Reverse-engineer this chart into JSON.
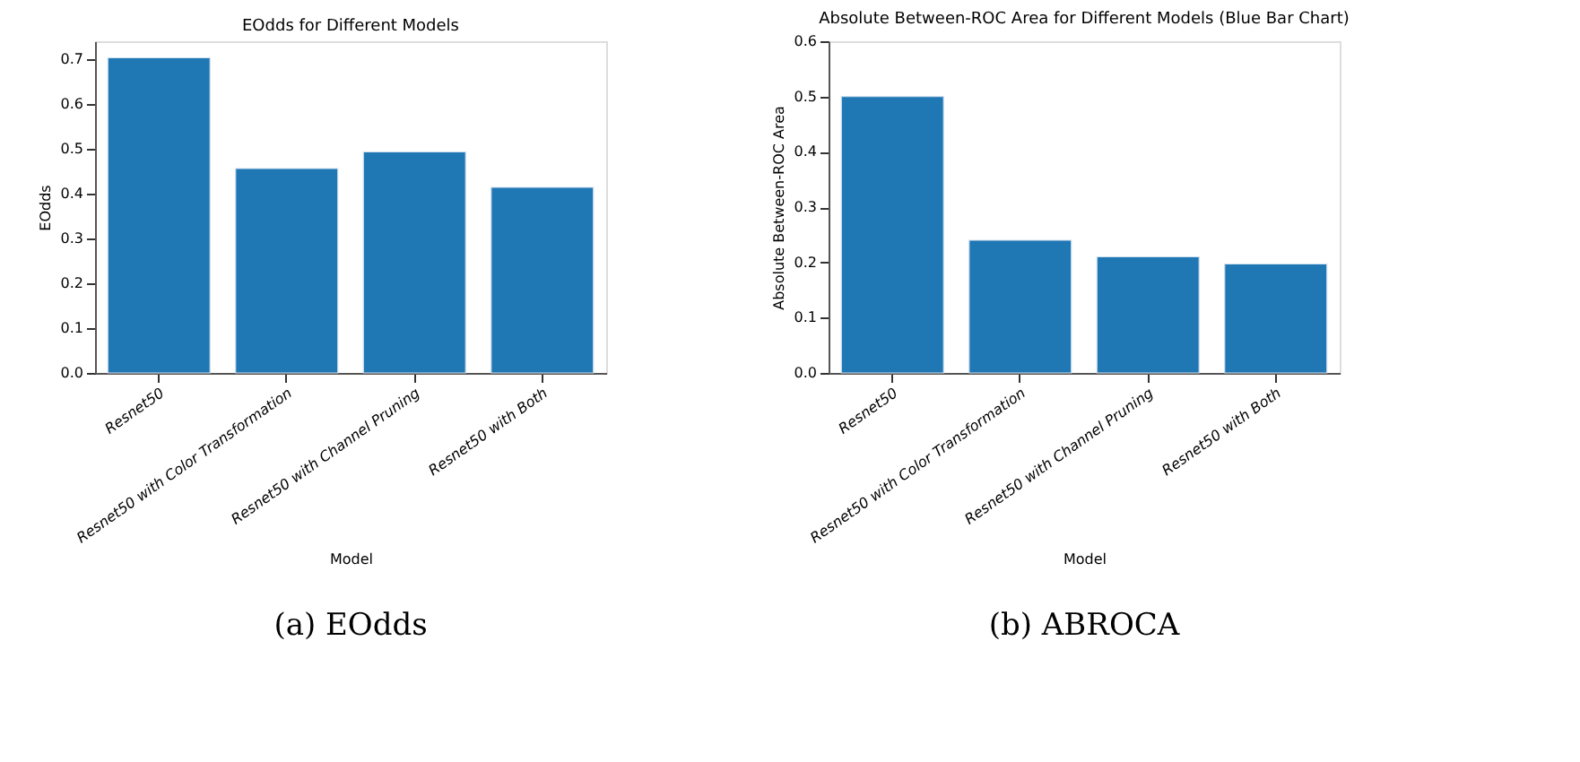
{
  "chart_data": [
    {
      "type": "bar",
      "title": "EOdds for Different Models",
      "xlabel": "Model",
      "ylabel": "EOdds",
      "categories": [
        "Resnet50",
        "Resnet50 with Color Transformation",
        "Resnet50 with Channel Pruning",
        "Resnet50 with Both"
      ],
      "values": [
        0.703,
        0.456,
        0.493,
        0.414
      ],
      "color": "#1f77b4",
      "ylim": [
        0,
        0.74
      ],
      "yticks": [
        {
          "value": 0,
          "label": "0.0"
        },
        0.1,
        0.2,
        0.3,
        0.4,
        0.5,
        0.6,
        0.7
      ],
      "grid": false,
      "annotations": [
        "(a) EOdds"
      ]
    },
    {
      "type": "bar",
      "title": "Absolute Between-ROC Area for Different Models (Blue Bar Chart)",
      "xlabel": "Model",
      "ylabel": "Absolute Between-ROC Area",
      "categories": [
        "Resnet50",
        "Resnet50 with Color Transformation",
        "Resnet50 with Channel Pruning",
        "Resnet50 with Both"
      ],
      "values": [
        0.5,
        0.24,
        0.21,
        0.197
      ],
      "color": "#1f77b4",
      "ylim": [
        0,
        0.6
      ],
      "yticks": [
        {
          "value": 0,
          "label": "0.0"
        },
        0.1,
        0.2,
        0.3,
        0.4,
        0.5,
        0.6
      ],
      "grid": false,
      "annotations": [
        "(b) ABROCA"
      ]
    }
  ]
}
